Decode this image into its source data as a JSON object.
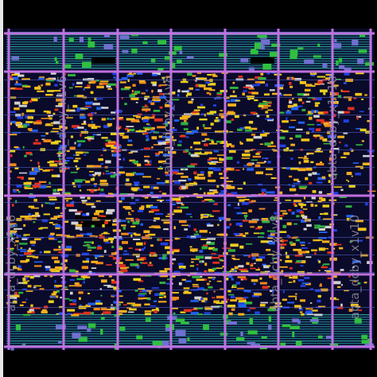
{
  "layout": {
    "labels": [
      "abta_dcby_x1v6",
      "abta_dcby_x1v8",
      "abta_dcby_x1v10",
      "abta_dcby_x1v6",
      "abta_dcby_x1v8",
      "abta_dcby_x1v10"
    ]
  }
}
